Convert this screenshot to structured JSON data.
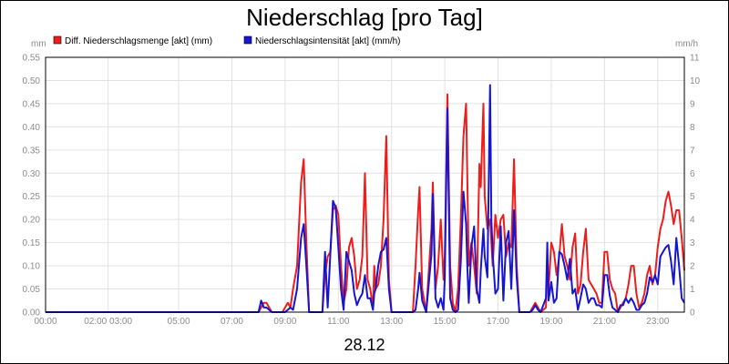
{
  "chart_data": {
    "type": "line",
    "title": "Niederschlag [pro Tag]",
    "subtitle": "28.12",
    "y_left_unit": "mm",
    "y_right_unit": "mm/h",
    "ylim_left": [
      0,
      0.55
    ],
    "ylim_right": [
      0,
      11
    ],
    "xlim_hours": [
      0,
      24
    ],
    "left_ticks": [
      "0.00",
      "0.05",
      "0.10",
      "0.15",
      "0.20",
      "0.25",
      "0.30",
      "0.35",
      "0.40",
      "0.45",
      "0.50",
      "0.55"
    ],
    "right_ticks": [
      "0",
      "1",
      "2",
      "3",
      "4",
      "5",
      "6",
      "7",
      "8",
      "9",
      "10",
      "11"
    ],
    "x_ticks": [
      {
        "h": 0,
        "label": "00:00"
      },
      {
        "h": 2.35,
        "label": "02:00 03:00"
      },
      {
        "h": 5,
        "label": "05:00"
      },
      {
        "h": 7,
        "label": "07:00"
      },
      {
        "h": 9,
        "label": "09:00"
      },
      {
        "h": 11,
        "label": "11:00"
      },
      {
        "h": 13,
        "label": "13:00"
      },
      {
        "h": 15,
        "label": "15:00"
      },
      {
        "h": 17,
        "label": "17:00"
      },
      {
        "h": 19,
        "label": "19:00"
      },
      {
        "h": 21,
        "label": "21:00"
      },
      {
        "h": 23,
        "label": "23:00"
      }
    ],
    "grid": true,
    "legend_position": "top-left",
    "series": [
      {
        "name": "Diff. Niederschlagsmenge [akt] (mm)",
        "axis": "left",
        "color": "#ee1c1c",
        "points": [
          [
            0,
            0
          ],
          [
            8.0,
            0
          ],
          [
            8.1,
            0.01
          ],
          [
            8.2,
            0.02
          ],
          [
            8.3,
            0.02
          ],
          [
            8.4,
            0.01
          ],
          [
            8.5,
            0
          ],
          [
            8.9,
            0
          ],
          [
            9.0,
            0.01
          ],
          [
            9.1,
            0.02
          ],
          [
            9.2,
            0.01
          ],
          [
            9.3,
            0.05
          ],
          [
            9.45,
            0.1
          ],
          [
            9.6,
            0.28
          ],
          [
            9.7,
            0.33
          ],
          [
            9.8,
            0.15
          ],
          [
            9.9,
            0
          ],
          [
            10.4,
            0
          ],
          [
            10.5,
            0.08
          ],
          [
            10.6,
            0.12
          ],
          [
            10.7,
            0.13
          ],
          [
            10.8,
            0.22
          ],
          [
            10.9,
            0.23
          ],
          [
            11.0,
            0.21
          ],
          [
            11.1,
            0.1
          ],
          [
            11.2,
            0.02
          ],
          [
            11.3,
            0.05
          ],
          [
            11.4,
            0.14
          ],
          [
            11.5,
            0.16
          ],
          [
            11.6,
            0.12
          ],
          [
            11.7,
            0.05
          ],
          [
            11.8,
            0.07
          ],
          [
            11.9,
            0.12
          ],
          [
            12.0,
            0.3
          ],
          [
            12.1,
            0.07
          ],
          [
            12.2,
            0.05
          ],
          [
            12.3,
            0.01
          ],
          [
            12.35,
            0.1
          ],
          [
            12.4,
            0.05
          ],
          [
            12.5,
            0.06
          ],
          [
            12.6,
            0.1
          ],
          [
            12.7,
            0.2
          ],
          [
            12.8,
            0.38
          ],
          [
            12.9,
            0.07
          ],
          [
            13.0,
            0
          ],
          [
            13.8,
            0
          ],
          [
            13.9,
            0.1
          ],
          [
            14.0,
            0.22
          ],
          [
            14.05,
            0.27
          ],
          [
            14.15,
            0.05
          ],
          [
            14.3,
            0
          ],
          [
            14.5,
            0.18
          ],
          [
            14.55,
            0.28
          ],
          [
            14.65,
            0.05
          ],
          [
            14.75,
            0.1
          ],
          [
            14.85,
            0.2
          ],
          [
            14.95,
            0.07
          ],
          [
            15.0,
            0.12
          ],
          [
            15.1,
            0.47
          ],
          [
            15.2,
            0.1
          ],
          [
            15.3,
            0.02
          ],
          [
            15.4,
            0
          ],
          [
            15.5,
            0.05
          ],
          [
            15.6,
            0.2
          ],
          [
            15.7,
            0.38
          ],
          [
            15.8,
            0.45
          ],
          [
            15.85,
            0.27
          ],
          [
            15.9,
            0.1
          ],
          [
            16.0,
            0.15
          ],
          [
            16.1,
            0.1
          ],
          [
            16.2,
            0.04
          ],
          [
            16.3,
            0.32
          ],
          [
            16.35,
            0.27
          ],
          [
            16.45,
            0.45
          ],
          [
            16.5,
            0.25
          ],
          [
            16.6,
            0.18
          ],
          [
            16.7,
            0.2
          ],
          [
            16.8,
            0.1
          ],
          [
            16.9,
            0.21
          ],
          [
            17.0,
            0.16
          ],
          [
            17.1,
            0.2
          ],
          [
            17.2,
            0.21
          ],
          [
            17.3,
            0.12
          ],
          [
            17.4,
            0.15
          ],
          [
            17.5,
            0.14
          ],
          [
            17.6,
            0.33
          ],
          [
            17.7,
            0.1
          ],
          [
            17.8,
            0
          ],
          [
            18.2,
            0
          ],
          [
            18.3,
            0.01
          ],
          [
            18.4,
            0.02
          ],
          [
            18.5,
            0.01
          ],
          [
            18.6,
            0
          ],
          [
            18.8,
            0.01
          ],
          [
            18.85,
            0.11
          ],
          [
            18.9,
            0.05
          ],
          [
            19.0,
            0.15
          ],
          [
            19.1,
            0.13
          ],
          [
            19.2,
            0.08
          ],
          [
            19.3,
            0.12
          ],
          [
            19.4,
            0.19
          ],
          [
            19.5,
            0.12
          ],
          [
            19.6,
            0.1
          ],
          [
            19.7,
            0.07
          ],
          [
            19.8,
            0.14
          ],
          [
            19.9,
            0.17
          ],
          [
            20.0,
            0.04
          ],
          [
            20.1,
            0.06
          ],
          [
            20.2,
            0.13
          ],
          [
            20.3,
            0.18
          ],
          [
            20.4,
            0.07
          ],
          [
            20.5,
            0.06
          ],
          [
            20.6,
            0.05
          ],
          [
            20.7,
            0.04
          ],
          [
            20.8,
            0.02
          ],
          [
            20.9,
            0.02
          ],
          [
            21.0,
            0.13
          ],
          [
            21.1,
            0.13
          ],
          [
            21.2,
            0.07
          ],
          [
            21.3,
            0.05
          ],
          [
            21.4,
            0.04
          ],
          [
            21.5,
            0
          ],
          [
            21.6,
            0.01
          ],
          [
            21.7,
            0.02
          ],
          [
            21.8,
            0.03
          ],
          [
            21.9,
            0.06
          ],
          [
            22.0,
            0.1
          ],
          [
            22.1,
            0.1
          ],
          [
            22.2,
            0.04
          ],
          [
            22.3,
            0.01
          ],
          [
            22.4,
            0.02
          ],
          [
            22.5,
            0.04
          ],
          [
            22.6,
            0.08
          ],
          [
            22.7,
            0.1
          ],
          [
            22.8,
            0.06
          ],
          [
            22.9,
            0.08
          ],
          [
            23.0,
            0.14
          ],
          [
            23.1,
            0.18
          ],
          [
            23.2,
            0.2
          ],
          [
            23.3,
            0.24
          ],
          [
            23.4,
            0.26
          ],
          [
            23.5,
            0.23
          ],
          [
            23.6,
            0.19
          ],
          [
            23.7,
            0.22
          ],
          [
            23.8,
            0.22
          ],
          [
            23.9,
            0.16
          ],
          [
            24.0,
            0.09
          ]
        ]
      },
      {
        "name": "Niederschlagsintensität [akt] (mm/h)",
        "axis": "right",
        "color": "#1616d2",
        "points": [
          [
            0,
            0
          ],
          [
            8.0,
            0
          ],
          [
            8.1,
            0.5
          ],
          [
            8.2,
            0.2
          ],
          [
            8.3,
            0.2
          ],
          [
            8.4,
            0.1
          ],
          [
            8.5,
            0
          ],
          [
            9.0,
            0
          ],
          [
            9.1,
            0.1
          ],
          [
            9.2,
            0.2
          ],
          [
            9.3,
            0.1
          ],
          [
            9.45,
            1.0
          ],
          [
            9.6,
            3.2
          ],
          [
            9.7,
            3.8
          ],
          [
            9.8,
            2.0
          ],
          [
            9.9,
            0
          ],
          [
            10.4,
            0
          ],
          [
            10.5,
            2.6
          ],
          [
            10.6,
            0.2
          ],
          [
            10.7,
            2.5
          ],
          [
            10.8,
            4.8
          ],
          [
            10.9,
            4.5
          ],
          [
            11.0,
            2.8
          ],
          [
            11.1,
            1.0
          ],
          [
            11.2,
            0.1
          ],
          [
            11.3,
            2.6
          ],
          [
            11.4,
            2.2
          ],
          [
            11.5,
            1.8
          ],
          [
            11.6,
            0.8
          ],
          [
            11.7,
            0.3
          ],
          [
            11.8,
            0.6
          ],
          [
            11.9,
            0.8
          ],
          [
            12.0,
            1.6
          ],
          [
            12.1,
            0.6
          ],
          [
            12.2,
            0.6
          ],
          [
            12.3,
            0.1
          ],
          [
            12.35,
            0.8
          ],
          [
            12.4,
            1.0
          ],
          [
            12.5,
            2.0
          ],
          [
            12.6,
            2.6
          ],
          [
            12.7,
            2.7
          ],
          [
            12.8,
            3.2
          ],
          [
            12.9,
            1.0
          ],
          [
            13.0,
            0
          ],
          [
            13.8,
            0
          ],
          [
            13.9,
            0.1
          ],
          [
            14.0,
            1.0
          ],
          [
            14.05,
            1.7
          ],
          [
            14.15,
            0.5
          ],
          [
            14.3,
            0
          ],
          [
            14.5,
            2.5
          ],
          [
            14.55,
            5.1
          ],
          [
            14.65,
            0.6
          ],
          [
            14.75,
            0.2
          ],
          [
            14.85,
            0.6
          ],
          [
            14.95,
            0.1
          ],
          [
            15.0,
            1.5
          ],
          [
            15.1,
            8.8
          ],
          [
            15.2,
            0.6
          ],
          [
            15.3,
            0.1
          ],
          [
            15.4,
            0
          ],
          [
            15.5,
            0.1
          ],
          [
            15.6,
            2.2
          ],
          [
            15.7,
            5.2
          ],
          [
            15.8,
            3.8
          ],
          [
            15.85,
            1.8
          ],
          [
            15.9,
            0.4
          ],
          [
            16.0,
            2.8
          ],
          [
            16.1,
            3.7
          ],
          [
            16.2,
            1.0
          ],
          [
            16.3,
            0.4
          ],
          [
            16.35,
            1.8
          ],
          [
            16.45,
            3.6
          ],
          [
            16.5,
            2.4
          ],
          [
            16.6,
            1.5
          ],
          [
            16.7,
            9.8
          ],
          [
            16.75,
            4.0
          ],
          [
            16.8,
            2.5
          ],
          [
            16.9,
            0.8
          ],
          [
            17.0,
            1.0
          ],
          [
            17.1,
            3.7
          ],
          [
            17.2,
            0.5
          ],
          [
            17.3,
            3.0
          ],
          [
            17.4,
            3.5
          ],
          [
            17.5,
            1.0
          ],
          [
            17.6,
            4.4
          ],
          [
            17.7,
            1.5
          ],
          [
            17.8,
            0
          ],
          [
            18.2,
            0
          ],
          [
            18.3,
            0.1
          ],
          [
            18.4,
            0.3
          ],
          [
            18.5,
            0.1
          ],
          [
            18.6,
            0
          ],
          [
            18.8,
            0.6
          ],
          [
            18.85,
            3.0
          ],
          [
            18.9,
            0.5
          ],
          [
            19.0,
            1.3
          ],
          [
            19.1,
            0.4
          ],
          [
            19.2,
            0.6
          ],
          [
            19.3,
            2.6
          ],
          [
            19.4,
            2.5
          ],
          [
            19.5,
            2.0
          ],
          [
            19.6,
            1.4
          ],
          [
            19.7,
            2.3
          ],
          [
            19.8,
            0.8
          ],
          [
            19.9,
            1.0
          ],
          [
            20.0,
            0.1
          ],
          [
            20.1,
            0.6
          ],
          [
            20.2,
            1.2
          ],
          [
            20.3,
            1.0
          ],
          [
            20.4,
            0.4
          ],
          [
            20.5,
            0.6
          ],
          [
            20.6,
            0.6
          ],
          [
            20.7,
            0.3
          ],
          [
            20.8,
            0.3
          ],
          [
            20.9,
            0.2
          ],
          [
            21.0,
            1.6
          ],
          [
            21.1,
            1.6
          ],
          [
            21.2,
            0.7
          ],
          [
            21.3,
            0.2
          ],
          [
            21.4,
            0.1
          ],
          [
            21.5,
            0
          ],
          [
            21.6,
            0.3
          ],
          [
            21.7,
            0.3
          ],
          [
            21.8,
            0.6
          ],
          [
            21.9,
            0.4
          ],
          [
            22.0,
            0.6
          ],
          [
            22.1,
            0.4
          ],
          [
            22.2,
            0.1
          ],
          [
            22.3,
            0.1
          ],
          [
            22.4,
            0.3
          ],
          [
            22.5,
            0.4
          ],
          [
            22.6,
            0.8
          ],
          [
            22.7,
            1.5
          ],
          [
            22.8,
            1.3
          ],
          [
            22.9,
            1.6
          ],
          [
            23.0,
            1.2
          ],
          [
            23.1,
            2.4
          ],
          [
            23.2,
            2.6
          ],
          [
            23.3,
            2.8
          ],
          [
            23.4,
            2.9
          ],
          [
            23.5,
            2.2
          ],
          [
            23.6,
            1.2
          ],
          [
            23.7,
            3.2
          ],
          [
            23.8,
            2.0
          ],
          [
            23.9,
            0.6
          ],
          [
            24.0,
            0.4
          ]
        ]
      }
    ]
  }
}
